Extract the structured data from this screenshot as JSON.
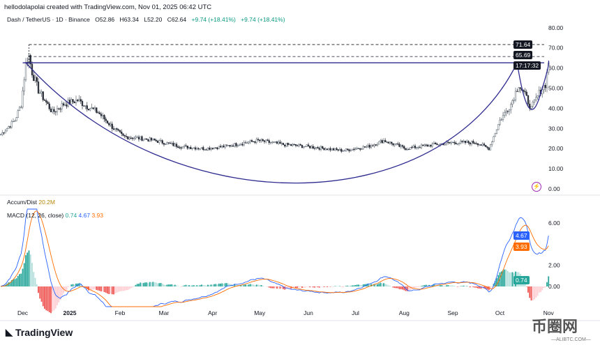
{
  "header": {
    "credit": "hellodolapolai created with TradingView.com, Nov 01, 2025 06:42 UTC",
    "symbol": "Dash / TetherUS · 1D · Binance",
    "open": "O52.86",
    "high": "H63.34",
    "low": "L52.20",
    "close": "C62.64",
    "change": "+9.74 (+18.41%)",
    "change2": "+9.74 (+18.41%)"
  },
  "indicators": {
    "accum_label": "Accum/Dist",
    "accum_value": "20.2M",
    "macd_label": "MACD (12, 26, close)",
    "macd_hist": "0.74",
    "macd_line": "4.67",
    "macd_signal": "3.93"
  },
  "price_tags": {
    "level1": "71.64",
    "level2": "65.69",
    "countdown": "17:17:32",
    "hist": "0.74",
    "macd": "4.67",
    "signal": "3.93"
  },
  "colors": {
    "up": "#26a69a",
    "down": "#ef5350",
    "trend": "#2e2a8f",
    "macd": "#2962ff",
    "signal": "#ff6d00"
  },
  "branding": {
    "logo": "TradingView",
    "watermark": "币圈网",
    "watermark_sub": "—ALIBTC.COM—"
  },
  "chart_data": {
    "type": "candlestick",
    "title": "Dash / TetherUS · 1D · Binance",
    "x_ticks": [
      "Dec",
      "2025",
      "Feb",
      "Mar",
      "Apr",
      "May",
      "Jun",
      "Jul",
      "Aug",
      "Sep",
      "Oct",
      "Nov"
    ],
    "x_tick_days": [
      14,
      44,
      76,
      104,
      135,
      165,
      196,
      226,
      257,
      288,
      318,
      349
    ],
    "y_ticks": [
      "80.00",
      "70.00",
      "60.00",
      "50.00",
      "40.00",
      "30.00",
      "20.00",
      "10.00",
      "0.00"
    ],
    "y_tick_values": [
      80,
      70,
      60,
      50,
      40,
      30,
      20,
      10,
      0
    ],
    "ylim": [
      0,
      80
    ],
    "close_anchors_day_price": [
      [
        0,
        27
      ],
      [
        9,
        34
      ],
      [
        13,
        42
      ],
      [
        16,
        62
      ],
      [
        18,
        66
      ],
      [
        20,
        58
      ],
      [
        24,
        49
      ],
      [
        33,
        38
      ],
      [
        40,
        42
      ],
      [
        49,
        44
      ],
      [
        55,
        41
      ],
      [
        62,
        38
      ],
      [
        72,
        30
      ],
      [
        78,
        26
      ],
      [
        90,
        25
      ],
      [
        98,
        24
      ],
      [
        115,
        21
      ],
      [
        130,
        20
      ],
      [
        142,
        21
      ],
      [
        164,
        24
      ],
      [
        180,
        22
      ],
      [
        196,
        21
      ],
      [
        218,
        19
      ],
      [
        234,
        21
      ],
      [
        244,
        24
      ],
      [
        258,
        20
      ],
      [
        276,
        22
      ],
      [
        289,
        23
      ],
      [
        303,
        23
      ],
      [
        311,
        20
      ],
      [
        318,
        34
      ],
      [
        325,
        42
      ],
      [
        330,
        52
      ],
      [
        335,
        45
      ],
      [
        338,
        40
      ],
      [
        344,
        49
      ],
      [
        347,
        52
      ],
      [
        349,
        62.64
      ]
    ],
    "levels": [
      {
        "label": "71.64",
        "value": 71.64,
        "style": "dashed"
      },
      {
        "label": "65.69",
        "value": 65.69,
        "style": "dashed"
      },
      {
        "value": 62.6,
        "style": "solid"
      }
    ],
    "cup_bottom_value": 5.5,
    "macd_panel": {
      "y_ticks": [
        "6.00",
        "2.00",
        "0.00"
      ],
      "y_tick_values": [
        6,
        2,
        0
      ],
      "fast": 12,
      "slow": 26,
      "signal": 9
    }
  }
}
